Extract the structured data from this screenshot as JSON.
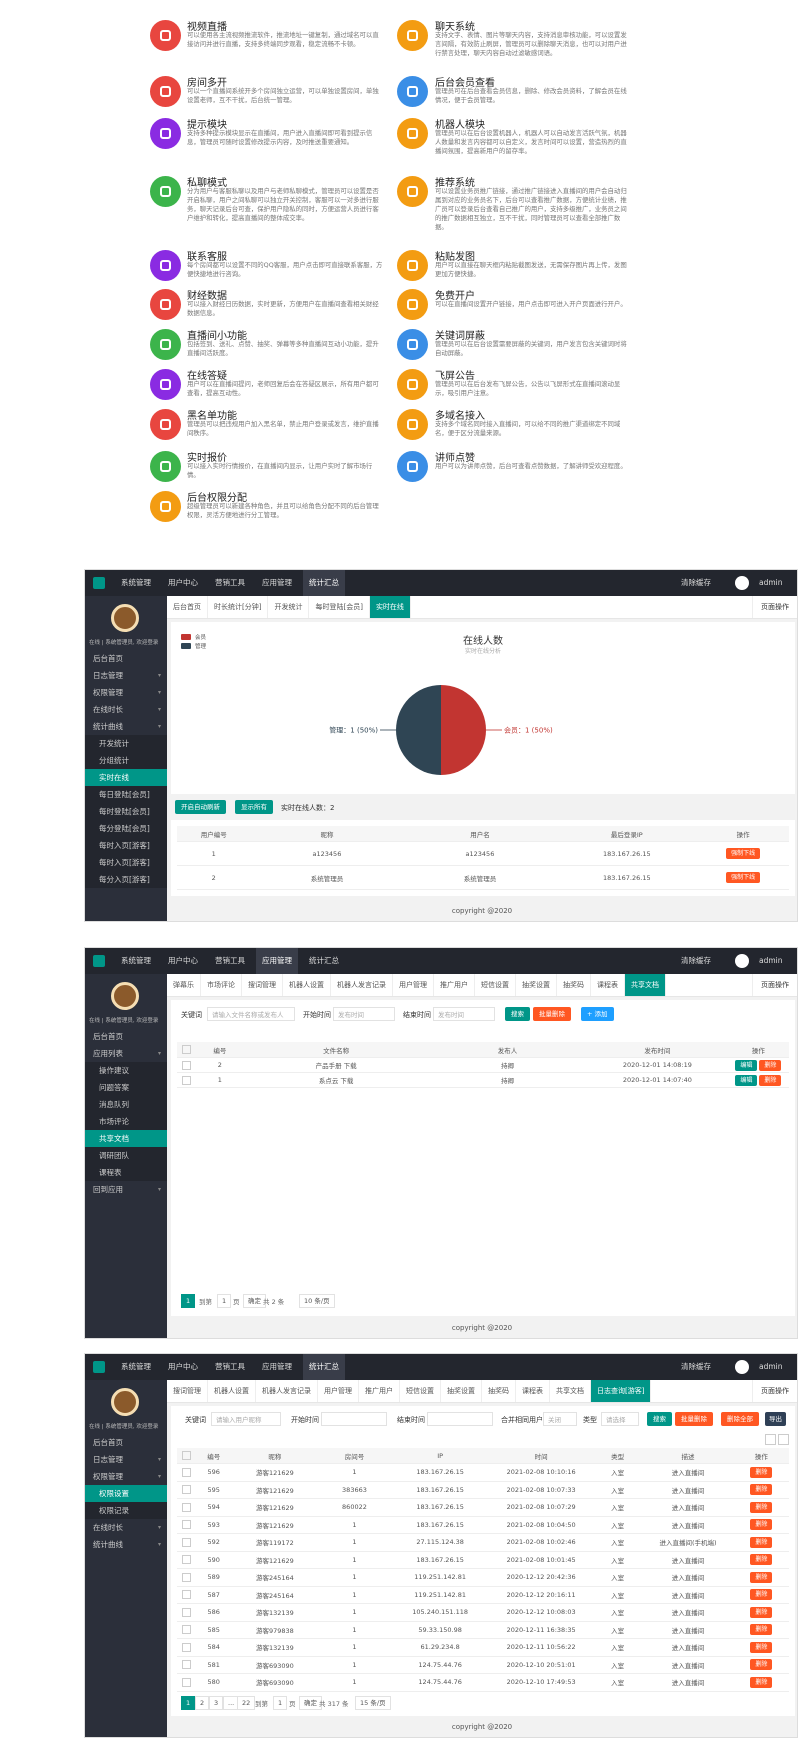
{
  "features": {
    "left": [
      {
        "title": "视频直播",
        "desc": "可以使用各主流视频推流软件，推流地址一键复制，通过域名可以直接访问并进行直播，支持多终端同步观看，稳定流畅不卡顿。",
        "color": "#e8463f"
      },
      {
        "title": "房间多开",
        "desc": "可以一个直播间系统开多个房间独立运营，可以单独设置房间，单独设置老师，互不干扰，后台统一管理。",
        "color": "#e8463f"
      },
      {
        "title": "提示模块",
        "desc": "支持多种提示模块显示在直播间，用户进入直播间即可看到提示信息，管理员可随时设置修改提示内容，及时推送重要通知。",
        "color": "#8a2be2"
      },
      {
        "title": "私聊模式",
        "desc": "分为用户与客服私聊以及用户与老师私聊模式，管理员可以设置是否开启私聊，用户之间私聊可以独立开关控制，客服可以一对多进行服务，聊天记录后台可查，保护用户隐私的同时，方便运营人员进行客户维护和转化，提高直播间的整体成交率。",
        "color": "#3cb44b"
      },
      {
        "title": "联系客服",
        "desc": "每个房间都可以设置不同的QQ客服，用户点击即可直接联系客服，方便快捷地进行咨询。",
        "color": "#8a2be2"
      },
      {
        "title": "财经数据",
        "desc": "可以接入财经日历数据，实时更新，方便用户在直播间查看相关财经数据信息。",
        "color": "#e8463f"
      },
      {
        "title": "直播间小功能",
        "desc": "包括签到、送礼、点赞、抽奖、弹幕等多种直播间互动小功能，提升直播间活跃度。",
        "color": "#3cb44b"
      },
      {
        "title": "在线答疑",
        "desc": "用户可以在直播间提问，老师回复后会在答疑区展示，所有用户都可查看，提高互动性。",
        "color": "#8a2be2"
      },
      {
        "title": "黑名单功能",
        "desc": "管理员可以把违规用户加入黑名单，禁止用户登录或发言，维护直播间秩序。",
        "color": "#e8463f"
      },
      {
        "title": "实时报价",
        "desc": "可以接入实时行情报价，在直播间内显示，让用户实时了解市场行情。",
        "color": "#3cb44b"
      },
      {
        "title": "后台权限分配",
        "desc": "超级管理员可以新建各种角色，并且可以给角色分配不同的后台管理权限，灵活方便地进行分工管理。",
        "color": "#f39c12"
      }
    ],
    "right": [
      {
        "title": "聊天系统",
        "desc": "支持文字、表情、图片等聊天内容，支持消息审核功能，可以设置发言间隔，有效防止刷屏，管理员可以删除聊天消息，也可以对用户进行禁言处理，聊天内容自动过滤敏感词语。",
        "color": "#f39c12"
      },
      {
        "title": "后台会员查看",
        "desc": "管理员可在后台查看会员信息，删除、修改会员资料，了解会员在线情况，便于会员管理。",
        "color": "#3a8ee6"
      },
      {
        "title": "机器人模块",
        "desc": "管理员可以在后台设置机器人，机器人可以自动发言活跃气氛，机器人数量和发言内容都可以自定义，发言时间可以设置，营造热烈的直播间氛围，提高新用户的留存率。",
        "color": "#f39c12"
      },
      {
        "title": "推荐系统",
        "desc": "可以设置业务员推广链接，通过推广链接进入直播间的用户会自动归属到对应的业务员名下，后台可以查看推广数据，方便统计业绩，推广员可以登录后台查看自己推广的用户，支持多级推广，业务员之间的推广数据相互独立，互不干扰，同时管理员可以查看全部推广数据。",
        "color": "#f39c12"
      },
      {
        "title": "粘贴发图",
        "desc": "用户可以直接在聊天框内粘贴截图发送，无需保存图片再上传，发图更加方便快捷。",
        "color": "#f39c12"
      },
      {
        "title": "免费开户",
        "desc": "可以在直播间设置开户链接，用户点击即可进入开户页面进行开户。",
        "color": "#f39c12"
      },
      {
        "title": "关键词屏蔽",
        "desc": "管理员可以在后台设置需要屏蔽的关键词，用户发言包含关键词时将自动屏蔽。",
        "color": "#3a8ee6"
      },
      {
        "title": "飞屏公告",
        "desc": "管理员可以在后台发布飞屏公告，公告以飞屏形式在直播间滚动显示，吸引用户注意。",
        "color": "#f39c12"
      },
      {
        "title": "多域名接入",
        "desc": "支持多个域名同时接入直播间，可以给不同的推广渠道绑定不同域名，便于区分流量来源。",
        "color": "#f39c12"
      },
      {
        "title": "讲师点赞",
        "desc": "用户可以为讲师点赞，后台可查看点赞数据，了解讲师受欢迎程度。",
        "color": "#3a8ee6"
      }
    ]
  },
  "topbar": {
    "nav": [
      "系统管理",
      "用户中心",
      "营销工具",
      "应用管理",
      "统计汇总"
    ],
    "clear_cache": "清除缓存",
    "user": "admin"
  },
  "brand": "在线 | 系统管理员, 欢迎登录",
  "footer": "copyright @2020",
  "page_menu": "页面操作",
  "screens": [
    {
      "sidebar": [
        {
          "label": "后台首页"
        },
        {
          "label": "日志管理"
        },
        {
          "label": "权限管理"
        },
        {
          "label": "在线时长"
        },
        {
          "label": "统计曲线",
          "children": [
            "开发统计",
            "分组统计",
            "实时在线",
            "每日登陆[会员]",
            "每时登陆[会员]",
            "每分登陆[会员]",
            "每时入页[游客]",
            "每时入页[游客]",
            "每分入页[游客]"
          ]
        }
      ],
      "tabs": [
        "后台首页",
        "时长统计[分钟]",
        "开发统计",
        "每时登陆[会员]",
        "实时在线"
      ],
      "pie": {
        "title": "在线人数",
        "subtitle": "实时在线分析",
        "series": [
          {
            "name": "会员",
            "value": 1,
            "color": "#c23531",
            "label": "会员：1 (50%)"
          },
          {
            "name": "管理",
            "value": 1,
            "color": "#2f4554",
            "label": "管理：1 (50%)"
          }
        ]
      },
      "controls": {
        "auto_refresh": "开启自动刷新",
        "show_all": "显示所有",
        "online_count": "实时在线人数：2"
      },
      "table": {
        "headers": [
          "用户编号",
          "昵称",
          "用户名",
          "最后登录IP",
          "操作"
        ],
        "rows": [
          [
            "1",
            "a123456",
            "a123456",
            "183.167.26.15",
            [
              "强制下线"
            ]
          ],
          [
            "2",
            "系统管理员",
            "系统管理员",
            "183.167.26.15",
            [
              "强制下线"
            ]
          ]
        ]
      }
    },
    {
      "sidebar": [
        {
          "label": "后台首页"
        },
        {
          "label": "应用列表",
          "children": [
            "操作建议",
            "问题答案",
            "消息队列",
            "市场评论",
            "共享文档",
            "调研团队",
            "课程表"
          ]
        },
        {
          "label": "回到应用"
        }
      ],
      "tabs": [
        "弹幕乐",
        "市场评论",
        "搜词管理",
        "机器人设置",
        "机器人发言记录",
        "用户管理",
        "推广用户",
        "短信设置",
        "抽奖设置",
        "抽奖码",
        "课程表",
        "共享文档"
      ],
      "filters": {
        "keyword_label": "关键词",
        "keyword_placeholder": "请输入文件名称或发布人",
        "start_label": "开始时间",
        "start_placeholder": "发布时间",
        "end_label": "结束时间",
        "end_placeholder": "发布时间",
        "search": "搜索",
        "batch_delete": "批量删除",
        "add": "+ 添加"
      },
      "table": {
        "headers": [
          "编号",
          "文件名称",
          "发布人",
          "发布时间",
          "操作"
        ],
        "rows": [
          [
            "2",
            "产品手册 下载",
            "持卿",
            "2020-12-01 14:08:19",
            [
              "编辑",
              "删除"
            ]
          ],
          [
            "1",
            "系点云 下载",
            "持卿",
            "2020-12-01 14:07:40",
            [
              "编辑",
              "删除"
            ]
          ]
        ]
      },
      "pagination": {
        "pages": [
          "1"
        ],
        "goto": "到第",
        "page_input": "1",
        "page_unit": "页",
        "confirm": "确定",
        "total": "共 2 条",
        "page_size": "10 条/页"
      }
    },
    {
      "sidebar": [
        {
          "label": "后台首页"
        },
        {
          "label": "日志管理"
        },
        {
          "label": "权限管理",
          "children": [
            "权限设置",
            "权限记录"
          ]
        },
        {
          "label": "在线时长"
        },
        {
          "label": "统计曲线"
        }
      ],
      "tabs": [
        "搜词管理",
        "机器人设置",
        "机器人发言记录",
        "用户管理",
        "推广用户",
        "短信设置",
        "抽奖设置",
        "抽奖码",
        "课程表",
        "共享文档",
        "日志查询[游客]"
      ],
      "filters": {
        "keyword_label": "关键词",
        "keyword_placeholder": "请输入用户昵称",
        "start_label": "开始时间",
        "end_label": "结束时间",
        "merge_label": "合并相同用户",
        "merge_value": "关闭",
        "type_label": "类型",
        "type_placeholder": "请选择",
        "search": "搜索",
        "batch_delete": "批量删除",
        "delete_all": "删除全部",
        "export": "导出"
      },
      "table": {
        "headers": [
          "编号",
          "昵称",
          "房间号",
          "IP",
          "时间",
          "类型",
          "描述",
          "操作"
        ],
        "rows": [
          [
            "596",
            "游客121629",
            "1",
            "183.167.26.15",
            "2021-02-08 10:10:16",
            "入室",
            "进入直播间",
            [
              "删除"
            ]
          ],
          [
            "595",
            "游客121629",
            "383663",
            "183.167.26.15",
            "2021-02-08 10:07:33",
            "入室",
            "进入直播间",
            [
              "删除"
            ]
          ],
          [
            "594",
            "游客121629",
            "860022",
            "183.167.26.15",
            "2021-02-08 10:07:29",
            "入室",
            "进入直播间",
            [
              "删除"
            ]
          ],
          [
            "593",
            "游客121629",
            "1",
            "183.167.26.15",
            "2021-02-08 10:04:50",
            "入室",
            "进入直播间",
            [
              "删除"
            ]
          ],
          [
            "592",
            "游客119172",
            "1",
            "27.115.124.38",
            "2021-02-08 10:02:46",
            "入室",
            "进入直播间(手机端)",
            [
              "删除"
            ]
          ],
          [
            "590",
            "游客121629",
            "1",
            "183.167.26.15",
            "2021-02-08 10:01:45",
            "入室",
            "进入直播间",
            [
              "删除"
            ]
          ],
          [
            "589",
            "游客245164",
            "1",
            "119.251.142.81",
            "2020-12-12 20:42:36",
            "入室",
            "进入直播间",
            [
              "删除"
            ]
          ],
          [
            "587",
            "游客245164",
            "1",
            "119.251.142.81",
            "2020-12-12 20:16:11",
            "入室",
            "进入直播间",
            [
              "删除"
            ]
          ],
          [
            "586",
            "游客132139",
            "1",
            "105.240.151.118",
            "2020-12-12 10:08:03",
            "入室",
            "进入直播间",
            [
              "删除"
            ]
          ],
          [
            "585",
            "游客979838",
            "1",
            "59.33.150.98",
            "2020-12-11 16:38:35",
            "入室",
            "进入直播间",
            [
              "删除"
            ]
          ],
          [
            "584",
            "游客132139",
            "1",
            "61.29.234.8",
            "2020-12-11 10:56:22",
            "入室",
            "进入直播间",
            [
              "删除"
            ]
          ],
          [
            "581",
            "游客693090",
            "1",
            "124.75.44.76",
            "2020-12-10 20:51:01",
            "入室",
            "进入直播间",
            [
              "删除"
            ]
          ],
          [
            "580",
            "游客693090",
            "1",
            "124.75.44.76",
            "2020-12-10 17:49:53",
            "入室",
            "进入直播间",
            [
              "删除"
            ]
          ]
        ]
      },
      "pagination": {
        "pages": [
          "1",
          "2",
          "3",
          "...",
          "22"
        ],
        "goto": "到第",
        "page_input": "1",
        "page_unit": "页",
        "confirm": "确定",
        "total": "共 317 条",
        "page_size": "15 条/页"
      }
    }
  ]
}
